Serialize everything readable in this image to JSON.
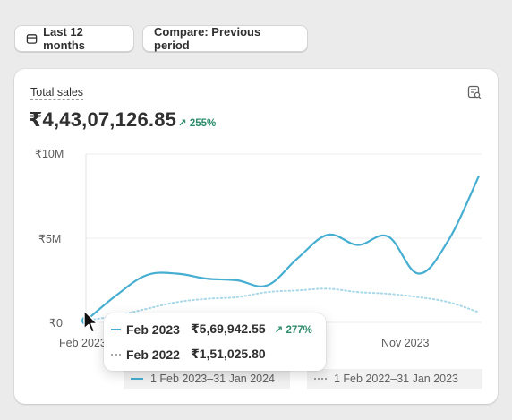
{
  "toolbar": {
    "date_range_label": "Last 12 months",
    "compare_label": "Compare: Previous period"
  },
  "card": {
    "title": "Total sales",
    "total_value": "₹4,43,07,126.85",
    "change_pct": "255%"
  },
  "colors": {
    "current_series": "#45aed1",
    "previous_series": "#a9d8e9",
    "positive": "#2f8a6b"
  },
  "chart_data": {
    "type": "line",
    "y_ticks": [
      "₹0",
      "₹5M",
      "₹10M"
    ],
    "ylim": [
      0,
      10000000
    ],
    "x_tick_labels": [
      "Feb 2023",
      "Nov 2023"
    ],
    "grid": true,
    "series": [
      {
        "name": "1 Feb 2023–31 Jan 2024",
        "style": "solid",
        "values": [
          0.1,
          1.6,
          2.8,
          2.9,
          2.6,
          2.5,
          2.2,
          3.8,
          5.2,
          4.6,
          5.1,
          2.9,
          4.9,
          8.7
        ]
      },
      {
        "name": "1 Feb 2022–31 Jan 2023",
        "style": "dotted",
        "values": [
          0.1,
          0.4,
          0.8,
          1.2,
          1.4,
          1.5,
          1.8,
          1.9,
          2.0,
          1.8,
          1.7,
          1.5,
          1.2,
          0.6
        ]
      }
    ]
  },
  "tooltip": {
    "current": {
      "date": "Feb 2023",
      "value": "₹5,69,942.55",
      "change": "277%"
    },
    "previous": {
      "date": "Feb 2022",
      "value": "₹1,51,025.80"
    }
  },
  "legend": {
    "current": "1 Feb 2023–31 Jan 2024",
    "previous": "1 Feb 2022–31 Jan 2023"
  }
}
